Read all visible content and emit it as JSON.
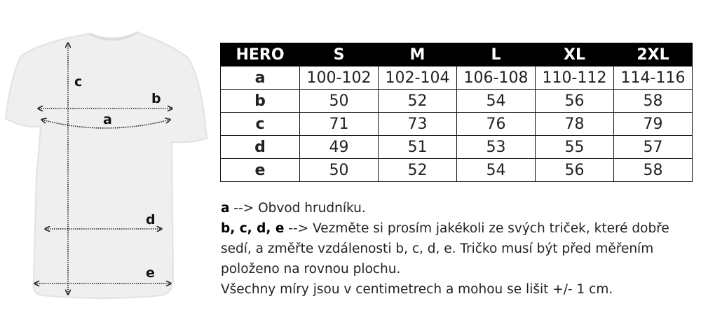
{
  "diagram": {
    "labels": {
      "a": "a",
      "b": "b",
      "c": "c",
      "d": "d",
      "e": "e"
    }
  },
  "table": {
    "headers": [
      "HERO",
      "S",
      "M",
      "L",
      "XL",
      "2XL"
    ],
    "rows": [
      {
        "label": "a",
        "values": [
          "100-102",
          "102-104",
          "106-108",
          "110-112",
          "114-116"
        ]
      },
      {
        "label": "b",
        "values": [
          "50",
          "52",
          "54",
          "56",
          "58"
        ]
      },
      {
        "label": "c",
        "values": [
          "71",
          "73",
          "76",
          "78",
          "79"
        ]
      },
      {
        "label": "d",
        "values": [
          "49",
          "51",
          "53",
          "55",
          "57"
        ]
      },
      {
        "label": "e",
        "values": [
          "50",
          "52",
          "54",
          "56",
          "58"
        ]
      }
    ]
  },
  "notes": {
    "line1_key": "a",
    "line1_text": " --> Obvod hrudníku.",
    "line2_key": "b, c, d, e",
    "line2_text": " --> Vezměte si prosím jakékoli ze svých triček, které dobře sedí, a změřte vzdálenosti b, c, d, e. Tričko musí být před měřením položeno na rovnou plochu.",
    "line3_text": "Všechny míry jsou v centimetrech a mohou se lišit +/- 1 cm."
  }
}
